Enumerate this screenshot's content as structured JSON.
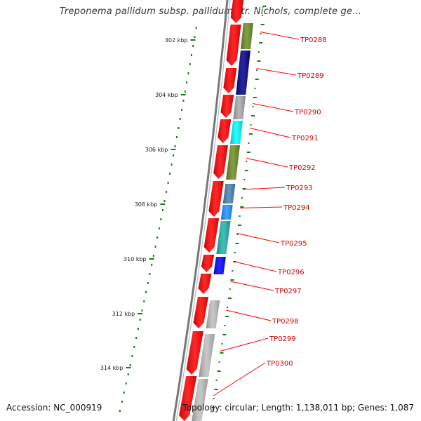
{
  "title": "Treponema pallidum subsp. pallidum str. Nichols, complete ge...",
  "footer": {
    "accession": "Accession: NC_000919",
    "summary": "Topology: circular; Length: 1,138,011 bp; Genes: 1,087"
  },
  "colors": {
    "backbone": "#777777",
    "forward_genes": "#ff0000",
    "label_line": "#ff0000",
    "label_text": "#cc0000",
    "ticks": "#1a7a1a"
  },
  "scale_labels": [
    "302 kbp",
    "304 kbp",
    "306 kbp",
    "308 kbp",
    "310 kbp",
    "312 kbp",
    "314 kbp"
  ],
  "genes": [
    {
      "label": "TP0288",
      "color": "#6b8e23"
    },
    {
      "label": "TP0289",
      "color": "#00008b"
    },
    {
      "label": "TP0290",
      "color": "#a9a9a9"
    },
    {
      "label": "TP0291",
      "color": "#00ffff"
    },
    {
      "label": "TP0292",
      "color": "#6b8e23"
    },
    {
      "label": "TP0293",
      "color": "#4682b4"
    },
    {
      "label": "TP0294",
      "color": "#1e90ff"
    },
    {
      "label": "TP0295",
      "color": "#20b2aa"
    },
    {
      "label": "TP0296",
      "color": "#0000ff"
    },
    {
      "label": "TP0297",
      "color": "#ff0000"
    },
    {
      "label": "TP0298",
      "color": "#bebebe"
    },
    {
      "label": "TP0299",
      "color": "#bebebe"
    },
    {
      "label": "TP0300",
      "color": "#bebebe"
    }
  ]
}
